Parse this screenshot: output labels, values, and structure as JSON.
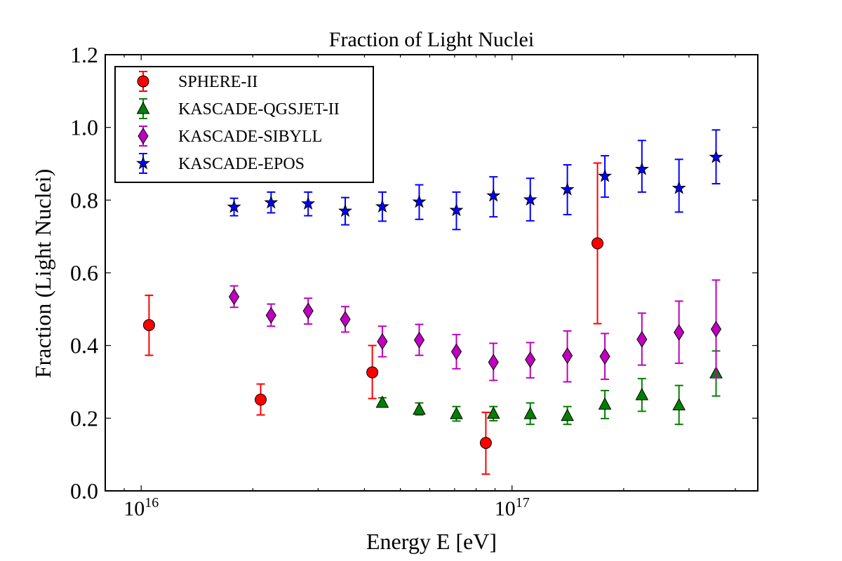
{
  "chart_data": {
    "type": "scatter",
    "title": "Fraction of Light Nuclei",
    "xlabel": "Energy E [eV]",
    "ylabel": "Fraction (Light Nuclei)",
    "xscale": "log",
    "xlim": [
      8000000000000000.0,
      4.6e+17
    ],
    "ylim": [
      0.0,
      1.2
    ],
    "x_ticks": [
      {
        "value": 1e+16,
        "base": "10",
        "exp": "16"
      },
      {
        "value": 1e+17,
        "base": "10",
        "exp": "17"
      }
    ],
    "y_ticks": [
      {
        "value": 0.0,
        "label": "0.0"
      },
      {
        "value": 0.2,
        "label": "0.2"
      },
      {
        "value": 0.4,
        "label": "0.4"
      },
      {
        "value": 0.6,
        "label": "0.6"
      },
      {
        "value": 0.8,
        "label": "0.8"
      },
      {
        "value": 1.0,
        "label": "1.0"
      },
      {
        "value": 1.2,
        "label": "1.2"
      }
    ],
    "grid": false,
    "legend_position": "top-left",
    "series": [
      {
        "name": "SPHERE-II",
        "marker": "circle",
        "color": "#ff0000",
        "errcolor": "#ff0000",
        "points": [
          {
            "x": 1.05e+16,
            "y": 0.456,
            "lo": 0.373,
            "hi": 0.538
          },
          {
            "x": 2.1e+16,
            "y": 0.251,
            "lo": 0.209,
            "hi": 0.294
          },
          {
            "x": 4.2e+16,
            "y": 0.326,
            "lo": 0.254,
            "hi": 0.4
          },
          {
            "x": 8.5e+16,
            "y": 0.132,
            "lo": 0.046,
            "hi": 0.216
          },
          {
            "x": 1.7e+17,
            "y": 0.681,
            "lo": 0.46,
            "hi": 0.902
          }
        ]
      },
      {
        "name": "KASCADE-QGSJET-II",
        "marker": "triangle",
        "color": "#008000",
        "errcolor": "#008000",
        "points": [
          {
            "x": 4.47e+16,
            "y": 0.243,
            "lo": 0.232,
            "hi": 0.256
          },
          {
            "x": 5.62e+16,
            "y": 0.224,
            "lo": 0.209,
            "hi": 0.242
          },
          {
            "x": 7.08e+16,
            "y": 0.212,
            "lo": 0.192,
            "hi": 0.232
          },
          {
            "x": 8.91e+16,
            "y": 0.213,
            "lo": 0.193,
            "hi": 0.232
          },
          {
            "x": 1.12e+17,
            "y": 0.212,
            "lo": 0.183,
            "hi": 0.242
          },
          {
            "x": 1.41e+17,
            "y": 0.207,
            "lo": 0.183,
            "hi": 0.232
          },
          {
            "x": 1.78e+17,
            "y": 0.238,
            "lo": 0.199,
            "hi": 0.276
          },
          {
            "x": 2.24e+17,
            "y": 0.264,
            "lo": 0.219,
            "hi": 0.309
          },
          {
            "x": 2.82e+17,
            "y": 0.236,
            "lo": 0.183,
            "hi": 0.29
          },
          {
            "x": 3.55e+17,
            "y": 0.324,
            "lo": 0.261,
            "hi": 0.385
          }
        ]
      },
      {
        "name": "KASCADE-SIBYLL",
        "marker": "diamond",
        "color": "#bf00bf",
        "errcolor": "#bf00bf",
        "points": [
          {
            "x": 1.78e+16,
            "y": 0.534,
            "lo": 0.505,
            "hi": 0.564
          },
          {
            "x": 2.24e+16,
            "y": 0.483,
            "lo": 0.453,
            "hi": 0.514
          },
          {
            "x": 2.82e+16,
            "y": 0.495,
            "lo": 0.459,
            "hi": 0.53
          },
          {
            "x": 3.55e+16,
            "y": 0.472,
            "lo": 0.437,
            "hi": 0.507
          },
          {
            "x": 4.47e+16,
            "y": 0.411,
            "lo": 0.369,
            "hi": 0.453
          },
          {
            "x": 5.62e+16,
            "y": 0.415,
            "lo": 0.373,
            "hi": 0.458
          },
          {
            "x": 7.08e+16,
            "y": 0.383,
            "lo": 0.336,
            "hi": 0.43
          },
          {
            "x": 8.91e+16,
            "y": 0.354,
            "lo": 0.304,
            "hi": 0.406
          },
          {
            "x": 1.12e+17,
            "y": 0.361,
            "lo": 0.311,
            "hi": 0.408
          },
          {
            "x": 1.41e+17,
            "y": 0.372,
            "lo": 0.3,
            "hi": 0.44
          },
          {
            "x": 1.78e+17,
            "y": 0.37,
            "lo": 0.307,
            "hi": 0.433
          },
          {
            "x": 2.24e+17,
            "y": 0.417,
            "lo": 0.346,
            "hi": 0.489
          },
          {
            "x": 2.82e+17,
            "y": 0.436,
            "lo": 0.351,
            "hi": 0.522
          },
          {
            "x": 3.55e+17,
            "y": 0.445,
            "lo": 0.311,
            "hi": 0.58
          }
        ]
      },
      {
        "name": "KASCADE-EPOS",
        "marker": "star",
        "color": "#0000ff",
        "errcolor": "#0000ff",
        "points": [
          {
            "x": 1.78e+16,
            "y": 0.781,
            "lo": 0.757,
            "hi": 0.805
          },
          {
            "x": 2.24e+16,
            "y": 0.793,
            "lo": 0.765,
            "hi": 0.822
          },
          {
            "x": 2.82e+16,
            "y": 0.79,
            "lo": 0.757,
            "hi": 0.822
          },
          {
            "x": 3.55e+16,
            "y": 0.77,
            "lo": 0.732,
            "hi": 0.807
          },
          {
            "x": 4.47e+16,
            "y": 0.782,
            "lo": 0.742,
            "hi": 0.822
          },
          {
            "x": 5.62e+16,
            "y": 0.795,
            "lo": 0.747,
            "hi": 0.842
          },
          {
            "x": 7.08e+16,
            "y": 0.772,
            "lo": 0.719,
            "hi": 0.822
          },
          {
            "x": 8.91e+16,
            "y": 0.812,
            "lo": 0.754,
            "hi": 0.864
          },
          {
            "x": 1.12e+17,
            "y": 0.801,
            "lo": 0.743,
            "hi": 0.86
          },
          {
            "x": 1.41e+17,
            "y": 0.829,
            "lo": 0.76,
            "hi": 0.897
          },
          {
            "x": 1.78e+17,
            "y": 0.866,
            "lo": 0.808,
            "hi": 0.922
          },
          {
            "x": 2.24e+17,
            "y": 0.885,
            "lo": 0.822,
            "hi": 0.964
          },
          {
            "x": 2.82e+17,
            "y": 0.833,
            "lo": 0.767,
            "hi": 0.912
          },
          {
            "x": 3.55e+17,
            "y": 0.918,
            "lo": 0.845,
            "hi": 0.993
          }
        ]
      }
    ]
  }
}
